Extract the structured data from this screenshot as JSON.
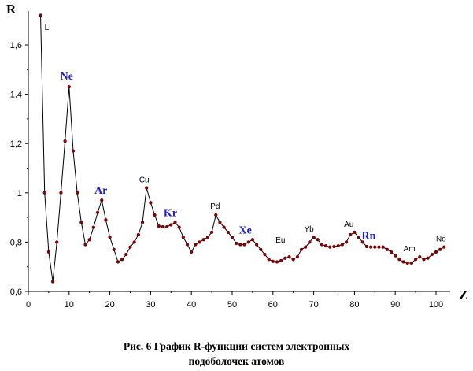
{
  "chart_data": {
    "type": "line",
    "ylabel": "R",
    "xlabel": "Z",
    "xlim": [
      0,
      103
    ],
    "ylim": [
      0.6,
      1.72
    ],
    "xticks": [
      "0",
      "10",
      "20",
      "30",
      "40",
      "50",
      "60",
      "70",
      "80",
      "90",
      "100"
    ],
    "yticks": [
      "0,6",
      "0,8",
      "1",
      "1,2",
      "1,4",
      "1,6"
    ],
    "line_color": "#000000",
    "marker_color": "#8b0000",
    "series": [
      {
        "x": [
          3,
          4,
          5,
          6,
          7,
          8,
          9,
          10,
          11,
          12,
          13,
          14,
          15,
          16,
          17,
          18,
          19,
          20,
          21,
          22,
          23,
          24,
          25,
          26,
          27,
          28,
          29,
          30,
          31,
          32,
          33,
          34,
          35,
          36,
          37,
          38,
          39,
          40,
          41,
          42,
          43,
          44,
          45,
          46,
          47,
          48,
          49,
          50,
          51,
          52,
          53,
          54,
          55,
          56,
          57,
          58,
          59,
          60,
          61,
          62,
          63,
          64,
          65,
          66,
          67,
          68,
          69,
          70,
          71,
          72,
          73,
          74,
          75,
          76,
          77,
          78,
          79,
          80,
          81,
          82,
          83,
          84,
          85,
          86,
          87,
          88,
          89,
          90,
          91,
          92,
          93,
          94,
          95,
          96,
          97,
          98,
          99,
          100,
          101,
          102
        ],
        "y": [
          1.72,
          1.0,
          0.76,
          0.64,
          0.8,
          1.0,
          1.21,
          1.43,
          1.17,
          1.0,
          0.88,
          0.79,
          0.81,
          0.86,
          0.92,
          0.97,
          0.89,
          0.82,
          0.77,
          0.72,
          0.73,
          0.75,
          0.78,
          0.8,
          0.83,
          0.88,
          1.02,
          0.96,
          0.91,
          0.865,
          0.862,
          0.862,
          0.87,
          0.88,
          0.86,
          0.82,
          0.79,
          0.76,
          0.79,
          0.8,
          0.81,
          0.82,
          0.84,
          0.91,
          0.88,
          0.86,
          0.84,
          0.82,
          0.795,
          0.79,
          0.79,
          0.8,
          0.81,
          0.79,
          0.77,
          0.75,
          0.73,
          0.722,
          0.72,
          0.725,
          0.735,
          0.74,
          0.73,
          0.74,
          0.77,
          0.78,
          0.8,
          0.82,
          0.81,
          0.79,
          0.785,
          0.78,
          0.782,
          0.785,
          0.79,
          0.8,
          0.83,
          0.84,
          0.82,
          0.8,
          0.782,
          0.78,
          0.78,
          0.78,
          0.78,
          0.77,
          0.76,
          0.745,
          0.73,
          0.72,
          0.715,
          0.715,
          0.73,
          0.74,
          0.73,
          0.735,
          0.75,
          0.76,
          0.77,
          0.78
        ]
      }
    ],
    "annotations": [
      {
        "text": "Li",
        "style": "small",
        "x": 3,
        "y": 1.72
      },
      {
        "text": "Ne",
        "style": "big",
        "x": 10,
        "y": 1.43
      },
      {
        "text": "Ar",
        "style": "big",
        "x": 18,
        "y": 0.97
      },
      {
        "text": "Cu",
        "style": "small",
        "x": 29,
        "y": 1.02
      },
      {
        "text": "Kr",
        "style": "big",
        "x": 36,
        "y": 0.88
      },
      {
        "text": "Pd",
        "style": "small",
        "x": 46,
        "y": 0.91
      },
      {
        "text": "Xe",
        "style": "big",
        "x": 54,
        "y": 0.81
      },
      {
        "text": "Eu",
        "style": "small",
        "x": 63,
        "y": 0.76
      },
      {
        "text": "Yb",
        "style": "small",
        "x": 70,
        "y": 0.82
      },
      {
        "text": "Au",
        "style": "small",
        "x": 79,
        "y": 0.84
      },
      {
        "text": "Rn",
        "style": "big",
        "x": 86,
        "y": 0.78
      },
      {
        "text": "Am",
        "style": "small",
        "x": 95,
        "y": 0.74
      },
      {
        "text": "No",
        "style": "small",
        "x": 102,
        "y": 0.78
      }
    ]
  },
  "caption": {
    "line1": "Рис. 6  График R-функции систем электронных",
    "line2": "подоболочек атомов"
  }
}
